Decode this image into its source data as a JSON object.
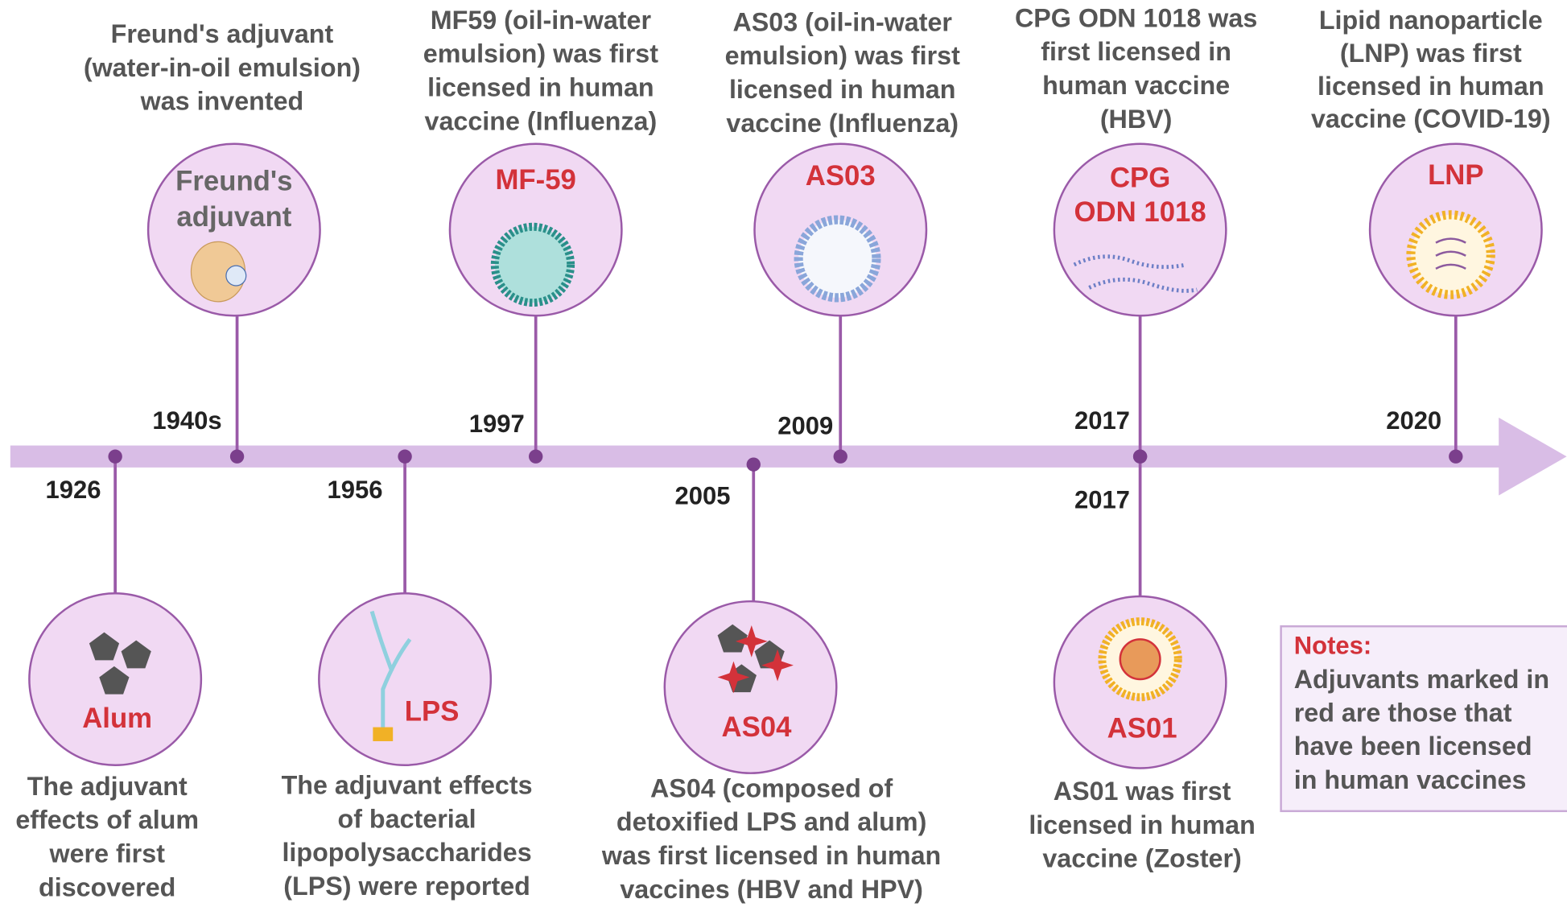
{
  "top_events": [
    {
      "year": "1940s",
      "label": [
        "Freund's",
        "adjuvant"
      ],
      "description": [
        "Freund's adjuvant",
        "(water-in-oil emulsion)",
        "was invented"
      ]
    },
    {
      "year": "1997",
      "label": [
        "MF-59"
      ],
      "description": [
        "MF59 (oil-in-water",
        "emulsion) was first",
        "licensed  in human",
        "vaccine (Influenza)"
      ]
    },
    {
      "year": "2009",
      "label": [
        "AS03"
      ],
      "description": [
        "AS03  (oil-in-water",
        "emulsion) was first",
        "licensed  in human",
        "vaccine (Influenza)"
      ]
    },
    {
      "year": "2017",
      "label": [
        "CPG",
        "ODN 1018"
      ],
      "description": [
        "CPG ODN 1018 was",
        "first licensed in",
        "human vaccine",
        "(HBV)"
      ]
    },
    {
      "year": "2020",
      "label": [
        "LNP"
      ],
      "description": [
        "Lipid nanoparticle",
        "(LNP) was first",
        "licensed in human",
        "vaccine (COVID-19)"
      ]
    }
  ],
  "bottom_events": [
    {
      "year": "1926",
      "label": [
        "Alum"
      ],
      "description": [
        "The adjuvant",
        "effects of alum",
        "were first",
        "discovered"
      ]
    },
    {
      "year": "1956",
      "label": [
        "LPS"
      ],
      "description": [
        "The adjuvant effects",
        "of bacterial",
        "lipopolysaccharides",
        "(LPS) were reported"
      ]
    },
    {
      "year": "2005",
      "label": [
        "AS04"
      ],
      "description": [
        "AS04 (composed of",
        "detoxified LPS and alum)",
        "was first licensed in human",
        "vaccines (HBV and HPV)"
      ]
    },
    {
      "year": "2017",
      "label": [
        "AS01"
      ],
      "description": [
        "AS01 was first",
        "licensed  in human",
        "vaccine (Zoster)"
      ]
    }
  ],
  "notes": {
    "title": "Notes:",
    "lines": [
      "Adjuvants marked in",
      "red  are  those  that",
      "have  been  licensed",
      "in human vaccines"
    ]
  }
}
